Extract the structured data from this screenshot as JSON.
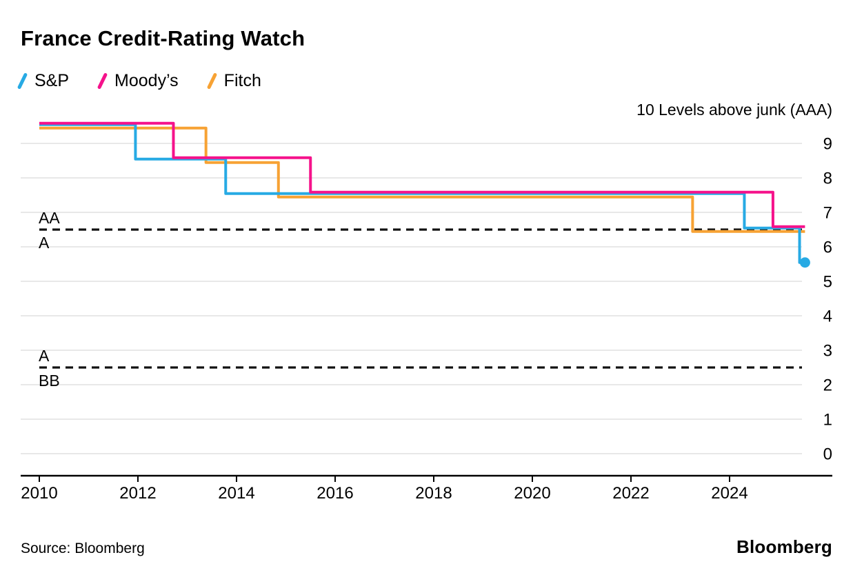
{
  "page": {
    "title": "France Credit-Rating Watch",
    "source": "Source: Bloomberg",
    "brand": "Bloomberg"
  },
  "chart_data": {
    "type": "line",
    "step": true,
    "title": "France Credit-Rating Watch",
    "axis_note": "10 Levels above junk (AAA)",
    "unit": "levels above junk (0 = junk threshold, 10 = AAA)",
    "grid": true,
    "legend_position": "top-left",
    "x_ticks": [
      2010,
      2012,
      2014,
      2016,
      2018,
      2020,
      2022,
      2024
    ],
    "y_ticks": [
      9,
      8,
      7,
      6,
      5,
      4,
      3,
      2,
      1,
      0
    ],
    "xlim": [
      2009.6,
      2026.1
    ],
    "ylim": [
      -0.6,
      10.4
    ],
    "series": [
      {
        "name": "S&P",
        "color": "#27AAE4",
        "end_dot": true,
        "points": [
          [
            2010,
            9.5
          ],
          [
            2011.95,
            9.5
          ],
          [
            2011.95,
            8.5
          ],
          [
            2013.78,
            8.5
          ],
          [
            2013.78,
            7.5
          ],
          [
            2024.3,
            7.5
          ],
          [
            2024.3,
            6.5
          ],
          [
            2025.42,
            6.5
          ],
          [
            2025.42,
            5.5
          ],
          [
            2025.53,
            5.5
          ]
        ]
      },
      {
        "name": "Moody’s",
        "color": "#F5128B",
        "end_dot": false,
        "points": [
          [
            2010,
            9.5
          ],
          [
            2012.72,
            9.5
          ],
          [
            2012.72,
            8.5
          ],
          [
            2015.5,
            8.5
          ],
          [
            2015.5,
            7.5
          ],
          [
            2024.88,
            7.5
          ],
          [
            2024.88,
            6.5
          ],
          [
            2025.53,
            6.5
          ]
        ]
      },
      {
        "name": "Fitch",
        "color": "#F7A234",
        "end_dot": false,
        "points": [
          [
            2010,
            9.5
          ],
          [
            2013.38,
            9.5
          ],
          [
            2013.38,
            8.5
          ],
          [
            2014.85,
            8.5
          ],
          [
            2014.85,
            7.5
          ],
          [
            2023.25,
            7.5
          ],
          [
            2023.25,
            6.5
          ],
          [
            2025.53,
            6.5
          ]
        ]
      }
    ],
    "thresholds": [
      {
        "value": 6.5,
        "label_above": "AA",
        "label_below": "A"
      },
      {
        "value": 2.5,
        "label_above": "A",
        "label_below": "BB"
      }
    ]
  }
}
